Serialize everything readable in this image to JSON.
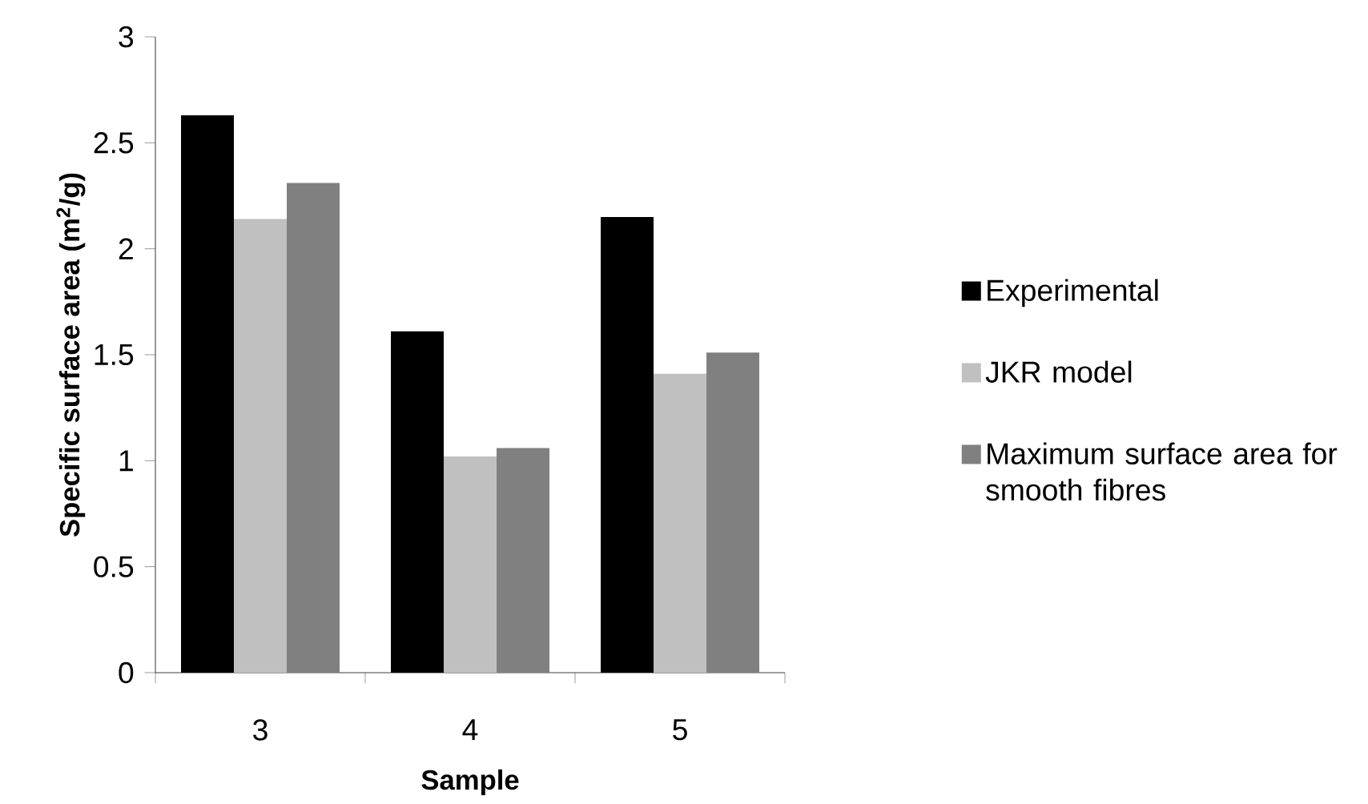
{
  "chart_data": {
    "type": "bar",
    "xlabel": "Sample",
    "ylabel": "Specific surface area (m$^{2}$/g)",
    "categories": [
      "3",
      "4",
      "5"
    ],
    "series": [
      {
        "name": "Experimental",
        "color": "#000000",
        "values": [
          2.63,
          1.61,
          2.15
        ]
      },
      {
        "name": "JKR model",
        "color": "#c0c0c0",
        "values": [
          2.14,
          1.02,
          1.41
        ]
      },
      {
        "name": "Maximum surface area for smooth fibres",
        "color": "#808080",
        "values": [
          2.31,
          1.06,
          1.51
        ]
      }
    ],
    "ylim": [
      0,
      3
    ],
    "yticks": [
      0,
      0.5,
      1,
      1.5,
      2,
      2.5,
      3
    ],
    "legend": "right"
  }
}
